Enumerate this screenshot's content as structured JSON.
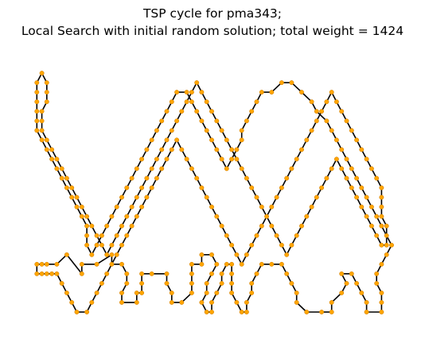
{
  "chart_data": {
    "type": "line",
    "title_lines": [
      "TSP cycle for pma343;",
      "Local Search with initial random solution; total weight = 1424"
    ],
    "xlabel": "",
    "ylabel": "",
    "axes_visible": false,
    "grid": false,
    "xlim": [
      0,
      72
    ],
    "ylim": [
      0,
      56
    ],
    "colors": {
      "path": "#000000",
      "node": "#ffa500",
      "node_edge": "#cc7a00"
    },
    "route": [
      [
        3,
        12
      ],
      [
        5,
        12
      ],
      [
        7,
        14
      ],
      [
        10,
        10
      ],
      [
        10,
        12
      ],
      [
        13,
        12
      ],
      [
        16,
        14
      ],
      [
        16,
        12
      ],
      [
        18,
        12
      ],
      [
        19,
        10
      ],
      [
        19,
        8
      ],
      [
        18,
        6
      ],
      [
        18,
        4
      ],
      [
        21,
        4
      ],
      [
        21,
        6
      ],
      [
        22,
        6
      ],
      [
        22,
        8
      ],
      [
        22,
        10
      ],
      [
        24,
        10
      ],
      [
        27,
        10
      ],
      [
        27,
        8
      ],
      [
        28,
        6
      ],
      [
        28,
        4
      ],
      [
        30,
        4
      ],
      [
        32,
        6
      ],
      [
        32,
        8
      ],
      [
        32,
        10
      ],
      [
        32,
        12
      ],
      [
        34,
        12
      ],
      [
        34,
        14
      ],
      [
        36,
        14
      ],
      [
        37,
        12
      ],
      [
        36,
        10
      ],
      [
        35,
        8
      ],
      [
        35,
        6
      ],
      [
        34,
        4
      ],
      [
        35,
        2
      ],
      [
        36,
        2
      ],
      [
        36,
        4
      ],
      [
        37,
        6
      ],
      [
        38,
        8
      ],
      [
        38,
        10
      ],
      [
        39,
        12
      ],
      [
        40,
        12
      ],
      [
        40,
        10
      ],
      [
        40,
        8
      ],
      [
        40,
        6
      ],
      [
        41,
        4
      ],
      [
        42,
        2
      ],
      [
        43,
        2
      ],
      [
        43,
        4
      ],
      [
        44,
        6
      ],
      [
        44,
        8
      ],
      [
        45,
        10
      ],
      [
        46,
        12
      ],
      [
        48,
        12
      ],
      [
        50,
        12
      ],
      [
        51,
        10
      ],
      [
        52,
        8
      ],
      [
        53,
        6
      ],
      [
        53,
        4
      ],
      [
        55,
        2
      ],
      [
        58,
        2
      ],
      [
        60,
        2
      ],
      [
        60,
        4
      ],
      [
        62,
        6
      ],
      [
        63,
        8
      ],
      [
        62,
        10
      ],
      [
        64,
        10
      ],
      [
        65,
        8
      ],
      [
        66,
        6
      ],
      [
        67,
        4
      ],
      [
        67,
        2
      ],
      [
        70,
        2
      ],
      [
        70,
        4
      ],
      [
        70,
        6
      ],
      [
        69,
        8
      ],
      [
        69,
        10
      ],
      [
        70,
        12
      ],
      [
        71,
        14
      ],
      [
        72,
        16
      ],
      [
        71,
        18
      ],
      [
        70,
        20
      ],
      [
        69,
        22
      ],
      [
        68,
        24
      ],
      [
        67,
        26
      ],
      [
        66,
        28
      ],
      [
        65,
        30
      ],
      [
        64,
        32
      ],
      [
        63,
        34
      ],
      [
        62,
        36
      ],
      [
        61,
        38
      ],
      [
        60,
        40
      ],
      [
        59,
        42
      ],
      [
        57,
        44
      ],
      [
        56,
        46
      ],
      [
        54,
        48
      ],
      [
        52,
        50
      ],
      [
        50,
        50
      ],
      [
        48,
        48
      ],
      [
        46,
        48
      ],
      [
        45,
        46
      ],
      [
        44,
        44
      ],
      [
        43,
        42
      ],
      [
        42,
        40
      ],
      [
        42,
        38
      ],
      [
        41,
        36
      ],
      [
        40,
        34
      ],
      [
        39,
        32
      ],
      [
        38,
        34
      ],
      [
        37,
        36
      ],
      [
        36,
        38
      ],
      [
        35,
        40
      ],
      [
        34,
        42
      ],
      [
        33,
        44
      ],
      [
        32,
        46
      ],
      [
        31,
        48
      ],
      [
        29,
        48
      ],
      [
        28,
        46
      ],
      [
        27,
        44
      ],
      [
        26,
        42
      ],
      [
        25,
        40
      ],
      [
        24,
        38
      ],
      [
        23,
        36
      ],
      [
        22,
        34
      ],
      [
        21,
        32
      ],
      [
        20,
        30
      ],
      [
        19,
        28
      ],
      [
        18,
        26
      ],
      [
        17,
        24
      ],
      [
        16,
        22
      ],
      [
        15,
        20
      ],
      [
        14,
        18
      ],
      [
        13,
        16
      ],
      [
        12,
        14
      ],
      [
        11,
        16
      ],
      [
        11,
        18
      ],
      [
        11,
        20
      ],
      [
        10,
        22
      ],
      [
        9,
        24
      ],
      [
        8,
        26
      ],
      [
        7,
        28
      ],
      [
        6,
        30
      ],
      [
        5,
        32
      ],
      [
        4,
        34
      ],
      [
        3,
        36
      ],
      [
        2,
        38
      ],
      [
        1,
        40
      ],
      [
        1,
        42
      ],
      [
        1,
        44
      ],
      [
        1,
        46
      ],
      [
        1,
        48
      ],
      [
        1,
        50
      ],
      [
        2,
        52
      ],
      [
        3,
        50
      ],
      [
        3,
        48
      ],
      [
        3,
        46
      ],
      [
        2,
        44
      ],
      [
        2,
        42
      ],
      [
        2,
        40
      ],
      [
        3,
        38
      ],
      [
        4,
        36
      ],
      [
        5,
        34
      ],
      [
        6,
        32
      ],
      [
        7,
        30
      ],
      [
        8,
        28
      ],
      [
        9,
        26
      ],
      [
        10,
        24
      ],
      [
        11,
        22
      ],
      [
        12,
        20
      ],
      [
        13,
        18
      ],
      [
        14,
        16
      ],
      [
        15,
        14
      ],
      [
        16,
        16
      ],
      [
        17,
        18
      ],
      [
        18,
        20
      ],
      [
        19,
        22
      ],
      [
        20,
        24
      ],
      [
        21,
        26
      ],
      [
        22,
        28
      ],
      [
        23,
        30
      ],
      [
        24,
        32
      ],
      [
        25,
        34
      ],
      [
        26,
        36
      ],
      [
        27,
        38
      ],
      [
        28,
        40
      ],
      [
        29,
        42
      ],
      [
        30,
        44
      ],
      [
        31,
        46
      ],
      [
        32,
        48
      ],
      [
        33,
        50
      ],
      [
        34,
        48
      ],
      [
        35,
        46
      ],
      [
        36,
        44
      ],
      [
        37,
        42
      ],
      [
        38,
        40
      ],
      [
        39,
        38
      ],
      [
        40,
        36
      ],
      [
        41,
        34
      ],
      [
        42,
        32
      ],
      [
        43,
        30
      ],
      [
        44,
        28
      ],
      [
        45,
        26
      ],
      [
        46,
        24
      ],
      [
        47,
        22
      ],
      [
        48,
        20
      ],
      [
        49,
        18
      ],
      [
        50,
        16
      ],
      [
        51,
        14
      ],
      [
        52,
        16
      ],
      [
        53,
        18
      ],
      [
        54,
        20
      ],
      [
        55,
        22
      ],
      [
        56,
        24
      ],
      [
        57,
        26
      ],
      [
        58,
        28
      ],
      [
        59,
        30
      ],
      [
        60,
        32
      ],
      [
        61,
        34
      ],
      [
        62,
        32
      ],
      [
        63,
        30
      ],
      [
        64,
        28
      ],
      [
        65,
        26
      ],
      [
        66,
        24
      ],
      [
        67,
        22
      ],
      [
        68,
        20
      ],
      [
        69,
        18
      ],
      [
        70,
        16
      ],
      [
        71,
        16
      ],
      [
        71,
        18
      ],
      [
        71,
        20
      ],
      [
        70,
        22
      ],
      [
        70,
        24
      ],
      [
        70,
        26
      ],
      [
        70,
        28
      ],
      [
        69,
        30
      ],
      [
        68,
        32
      ],
      [
        67,
        34
      ],
      [
        66,
        36
      ],
      [
        65,
        38
      ],
      [
        64,
        40
      ],
      [
        63,
        42
      ],
      [
        62,
        44
      ],
      [
        61,
        46
      ],
      [
        60,
        48
      ],
      [
        59,
        46
      ],
      [
        58,
        44
      ],
      [
        57,
        42
      ],
      [
        56,
        40
      ],
      [
        55,
        38
      ],
      [
        54,
        36
      ],
      [
        53,
        34
      ],
      [
        52,
        32
      ],
      [
        51,
        30
      ],
      [
        50,
        28
      ],
      [
        49,
        26
      ],
      [
        48,
        24
      ],
      [
        47,
        22
      ],
      [
        46,
        20
      ],
      [
        45,
        18
      ],
      [
        44,
        16
      ],
      [
        43,
        14
      ],
      [
        42,
        12
      ],
      [
        41,
        14
      ],
      [
        40,
        16
      ],
      [
        39,
        18
      ],
      [
        38,
        20
      ],
      [
        37,
        22
      ],
      [
        36,
        24
      ],
      [
        35,
        26
      ],
      [
        34,
        28
      ],
      [
        33,
        30
      ],
      [
        32,
        32
      ],
      [
        31,
        34
      ],
      [
        30,
        36
      ],
      [
        29,
        38
      ],
      [
        28,
        36
      ],
      [
        27,
        34
      ],
      [
        26,
        32
      ],
      [
        25,
        30
      ],
      [
        24,
        28
      ],
      [
        23,
        26
      ],
      [
        22,
        24
      ],
      [
        21,
        22
      ],
      [
        20,
        20
      ],
      [
        19,
        18
      ],
      [
        18,
        16
      ],
      [
        17,
        14
      ],
      [
        16,
        12
      ],
      [
        15,
        10
      ],
      [
        14,
        8
      ],
      [
        13,
        6
      ],
      [
        12,
        4
      ],
      [
        11,
        2
      ],
      [
        9,
        2
      ],
      [
        8,
        4
      ],
      [
        7,
        6
      ],
      [
        6,
        8
      ],
      [
        5,
        10
      ],
      [
        4,
        10
      ],
      [
        3,
        10
      ],
      [
        2,
        10
      ],
      [
        1,
        10
      ],
      [
        1,
        12
      ],
      [
        2,
        12
      ]
    ]
  }
}
